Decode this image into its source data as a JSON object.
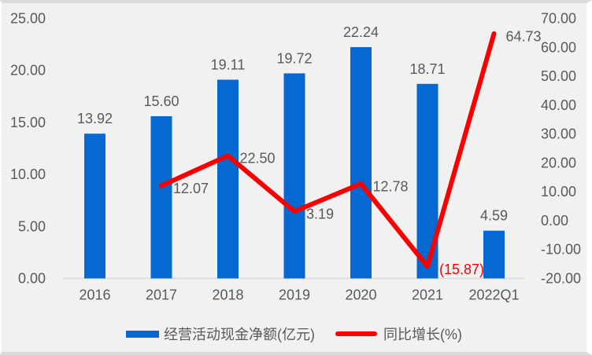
{
  "chart_data": {
    "type": "bar",
    "subtype": "bar-line-combo",
    "title": "",
    "categories": [
      "2016",
      "2017",
      "2018",
      "2019",
      "2020",
      "2021",
      "2022Q1"
    ],
    "series": [
      {
        "name": "经营活动现金净额(亿元)",
        "type": "bar",
        "axis": "left",
        "values": [
          13.92,
          15.6,
          19.11,
          19.72,
          22.24,
          18.71,
          4.59
        ],
        "labels": [
          "13.92",
          "15.60",
          "19.11",
          "19.72",
          "22.24",
          "18.71",
          "4.59"
        ]
      },
      {
        "name": "同比增长(%)",
        "type": "line",
        "axis": "right",
        "values": [
          null,
          12.07,
          22.5,
          3.19,
          12.78,
          -15.87,
          64.73
        ],
        "labels": [
          null,
          "12.07",
          "22.50",
          "3.19",
          "12.78",
          "(15.87)",
          "64.73"
        ]
      }
    ],
    "left_axis": {
      "min": 0,
      "max": 25,
      "step": 5,
      "tick_labels": [
        "0.00",
        "5.00",
        "10.00",
        "15.00",
        "20.00",
        "25.00"
      ]
    },
    "right_axis": {
      "min": -20,
      "max": 70,
      "step": 10,
      "tick_labels": [
        "-20.00",
        "-10.00",
        "0.00",
        "10.00",
        "20.00",
        "30.00",
        "40.00",
        "50.00",
        "60.00",
        "70.00"
      ]
    },
    "grid": false,
    "legend_position": "bottom"
  },
  "legend": {
    "bar_label": "经营活动现金净额(亿元)",
    "line_label": "同比增长(%)"
  },
  "colors": {
    "bar": "#0669D2",
    "line": "#FB0000",
    "negative_label": "#FB0000",
    "text": "#595959",
    "axis_line": "#D9D9D9",
    "plot_bg": "#F1F1F1"
  }
}
